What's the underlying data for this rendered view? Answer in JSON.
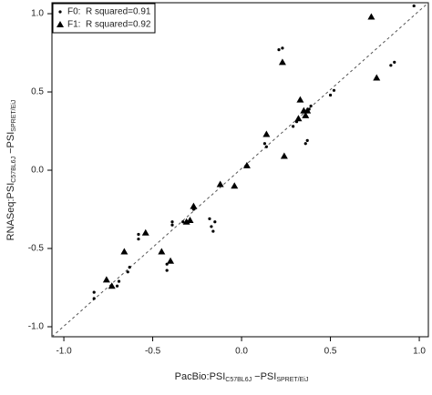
{
  "chart_data": {
    "type": "scatter",
    "xlabel": [
      "PacBio:PSI",
      "C57BL6J",
      " −PSI",
      "SPRET/EiJ"
    ],
    "ylabel": [
      "RNASeq:PSI",
      "C57BL6J",
      " −PSI",
      "SPRET/EiJ"
    ],
    "xlim": [
      -1.067,
      1.051
    ],
    "ylim": [
      -1.064,
      1.07
    ],
    "xticks": [
      {
        "value": -1,
        "label": "-1.0"
      },
      -0.5,
      {
        "value": 0,
        "label": "0.0"
      },
      0.5,
      {
        "value": 1,
        "label": "1.0"
      }
    ],
    "yticks": [
      {
        "value": -1,
        "label": "-1.0"
      },
      -0.5,
      {
        "value": 0,
        "label": "0.0"
      },
      0.5,
      {
        "value": 1,
        "label": "1.0"
      }
    ],
    "legend": "top-left",
    "series": [
      {
        "name": "F0:",
        "stat_label": "R squared=0.91",
        "marker": "circle",
        "color": "#000000",
        "x": [
          -0.83,
          -0.83,
          -0.7,
          -0.69,
          -0.64,
          -0.63,
          -0.58,
          -0.58,
          -0.42,
          -0.42,
          -0.39,
          -0.39,
          -0.33,
          -0.27,
          -0.27,
          -0.18,
          -0.17,
          -0.16,
          -0.15,
          0.13,
          0.14,
          0.21,
          0.23,
          0.29,
          0.31,
          0.36,
          0.37,
          0.38,
          0.39,
          0.5,
          0.52,
          0.84,
          0.86,
          0.97
        ],
        "y": [
          -0.78,
          -0.82,
          -0.74,
          -0.71,
          -0.65,
          -0.62,
          -0.44,
          -0.41,
          -0.64,
          -0.6,
          -0.35,
          -0.33,
          -0.33,
          -0.25,
          -0.23,
          -0.31,
          -0.36,
          -0.39,
          -0.33,
          0.17,
          0.15,
          0.77,
          0.78,
          0.28,
          0.31,
          0.17,
          0.19,
          0.39,
          0.41,
          0.48,
          0.51,
          0.67,
          0.69,
          1.05
        ]
      },
      {
        "name": "F1:",
        "stat_label": "R squared=0.92",
        "marker": "triangle",
        "color": "#000000",
        "x": [
          -0.76,
          -0.73,
          -0.66,
          -0.54,
          -0.45,
          -0.4,
          -0.31,
          -0.29,
          -0.27,
          -0.12,
          -0.04,
          0.03,
          0.14,
          0.23,
          0.24,
          0.32,
          0.33,
          0.35,
          0.36,
          0.37,
          0.73,
          0.76
        ],
        "y": [
          -0.7,
          -0.74,
          -0.52,
          -0.4,
          -0.52,
          -0.58,
          -0.33,
          -0.32,
          -0.23,
          -0.09,
          -0.1,
          0.03,
          0.23,
          0.69,
          0.09,
          0.33,
          0.45,
          0.38,
          0.35,
          0.38,
          0.98,
          0.59
        ]
      }
    ]
  }
}
